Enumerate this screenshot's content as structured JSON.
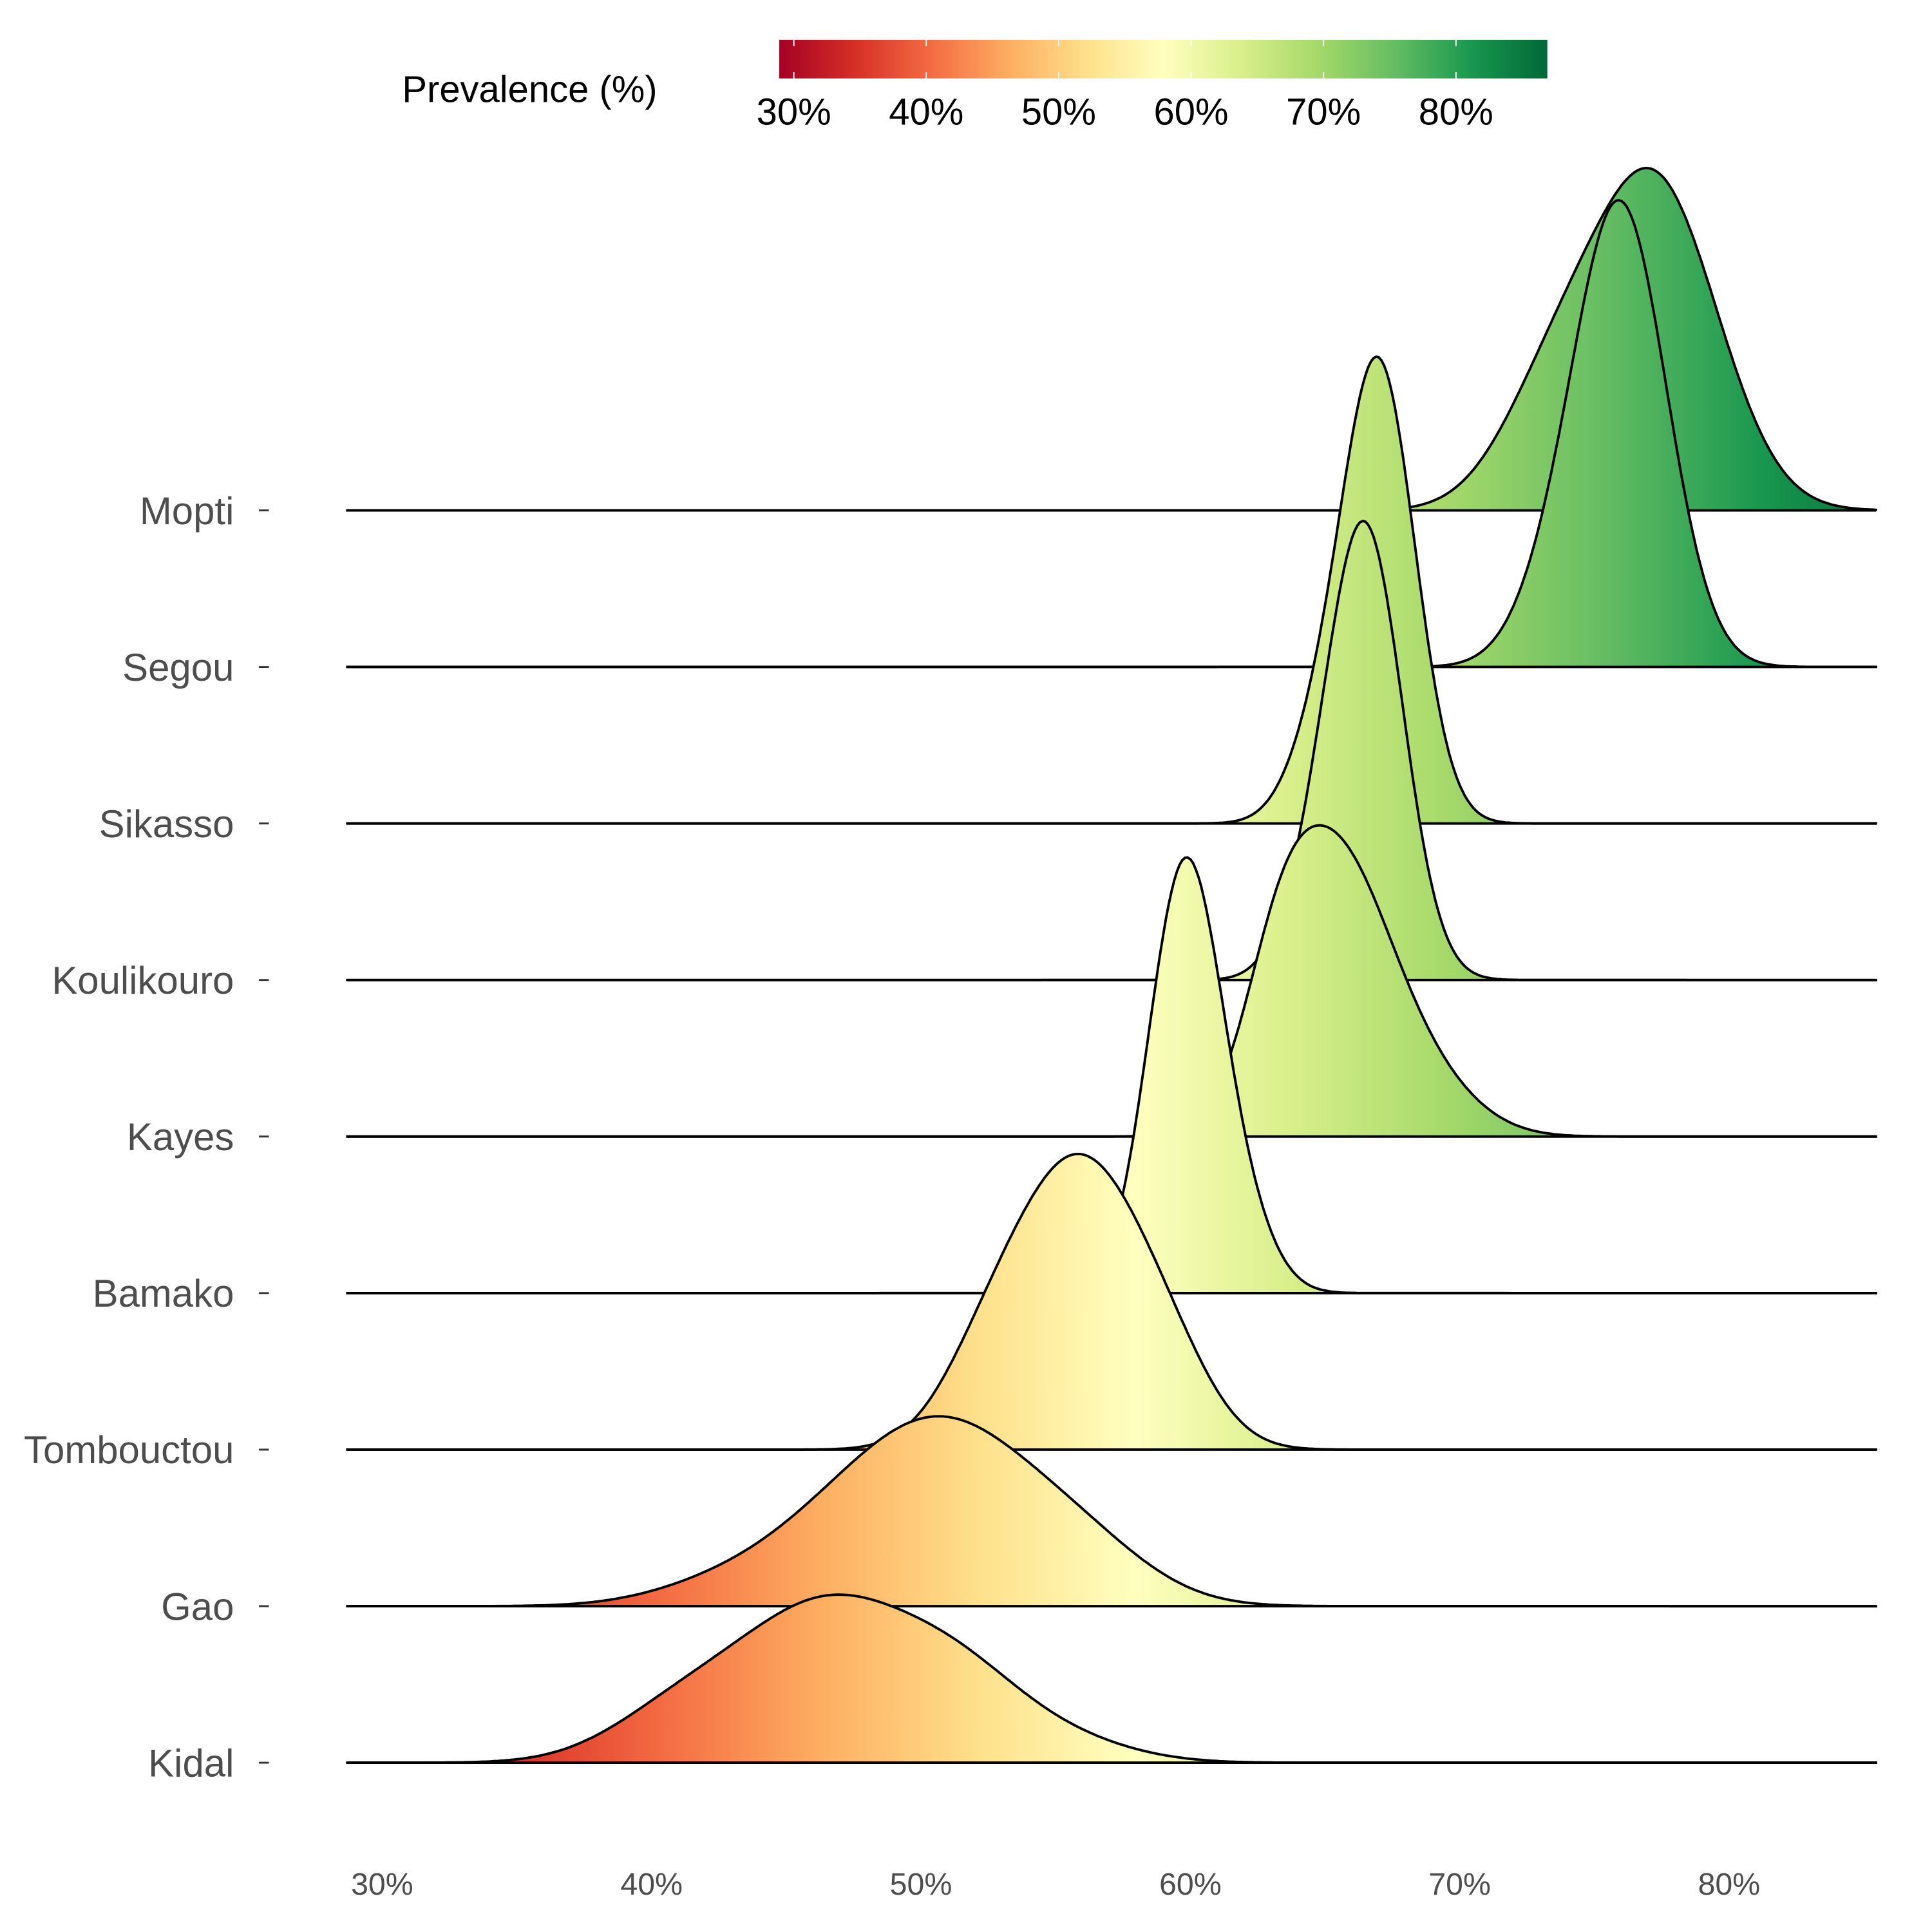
{
  "chart_data": {
    "type": "ridgeline",
    "title": "",
    "xlabel": "",
    "ylabel": "",
    "xlim": [
      28.7,
      85.5
    ],
    "x_ticks": [
      30,
      40,
      50,
      60,
      70,
      80
    ],
    "x_tick_labels": [
      "30%",
      "40%",
      "50%",
      "60%",
      "70%",
      "80%"
    ],
    "legend": {
      "title": "Prevalence (%)",
      "placement": "top",
      "range": [
        28.9,
        86.9
      ],
      "tick_labels": [
        "30%",
        "40%",
        "50%",
        "60%",
        "70%",
        "80%"
      ],
      "ticks": [
        30,
        40,
        50,
        60,
        70,
        80
      ],
      "palette": [
        "#a50026",
        "#d73027",
        "#f46d43",
        "#fdae61",
        "#fee08b",
        "#ffffbf",
        "#d9ef8b",
        "#a6d96a",
        "#66bd63",
        "#1a9850",
        "#006837"
      ]
    },
    "series": [
      {
        "name": "Mopti",
        "peak_scale": 2.2,
        "components": [
          [
            77.3,
            2.3,
            1.0
          ],
          [
            73.5,
            2.0,
            0.35
          ]
        ]
      },
      {
        "name": "Segou",
        "peak_scale": 3.0,
        "components": [
          [
            76.0,
            1.7,
            1.0
          ],
          [
            73.5,
            1.5,
            0.12
          ]
        ]
      },
      {
        "name": "Sikasso",
        "peak_scale": 3.0,
        "components": [
          [
            67.0,
            1.35,
            1.0
          ],
          [
            64.8,
            1.2,
            0.15
          ]
        ]
      },
      {
        "name": "Koulikouro",
        "peak_scale": 2.95,
        "components": [
          [
            66.5,
            1.4,
            1.0
          ],
          [
            64.5,
            1.2,
            0.12
          ]
        ]
      },
      {
        "name": "Kayes",
        "peak_scale": 2.0,
        "components": [
          [
            65.3,
            2.0,
            1.0
          ],
          [
            63.2,
            1.3,
            0.35
          ],
          [
            68.5,
            2.0,
            0.2
          ]
        ]
      },
      {
        "name": "Bamako",
        "peak_scale": 2.8,
        "components": [
          [
            59.8,
            1.35,
            1.0
          ],
          [
            62.0,
            1.2,
            0.12
          ]
        ]
      },
      {
        "name": "Tombouctou",
        "peak_scale": 1.9,
        "components": [
          [
            55.8,
            2.2,
            1.0
          ],
          [
            52.5,
            1.8,
            0.3
          ],
          [
            59.0,
            1.8,
            0.3
          ]
        ]
      },
      {
        "name": "Gao",
        "peak_scale": 1.22,
        "components": [
          [
            51.0,
            3.2,
            1.0
          ],
          [
            46.5,
            3.0,
            0.35
          ],
          [
            56.0,
            2.6,
            0.3
          ],
          [
            42.0,
            2.5,
            0.08
          ]
        ]
      },
      {
        "name": "Kidal",
        "peak_scale": 1.08,
        "components": [
          [
            46.5,
            3.2,
            1.0
          ],
          [
            41.0,
            2.6,
            0.3
          ],
          [
            51.5,
            2.5,
            0.45
          ],
          [
            55.5,
            2.5,
            0.12
          ]
        ]
      }
    ]
  }
}
